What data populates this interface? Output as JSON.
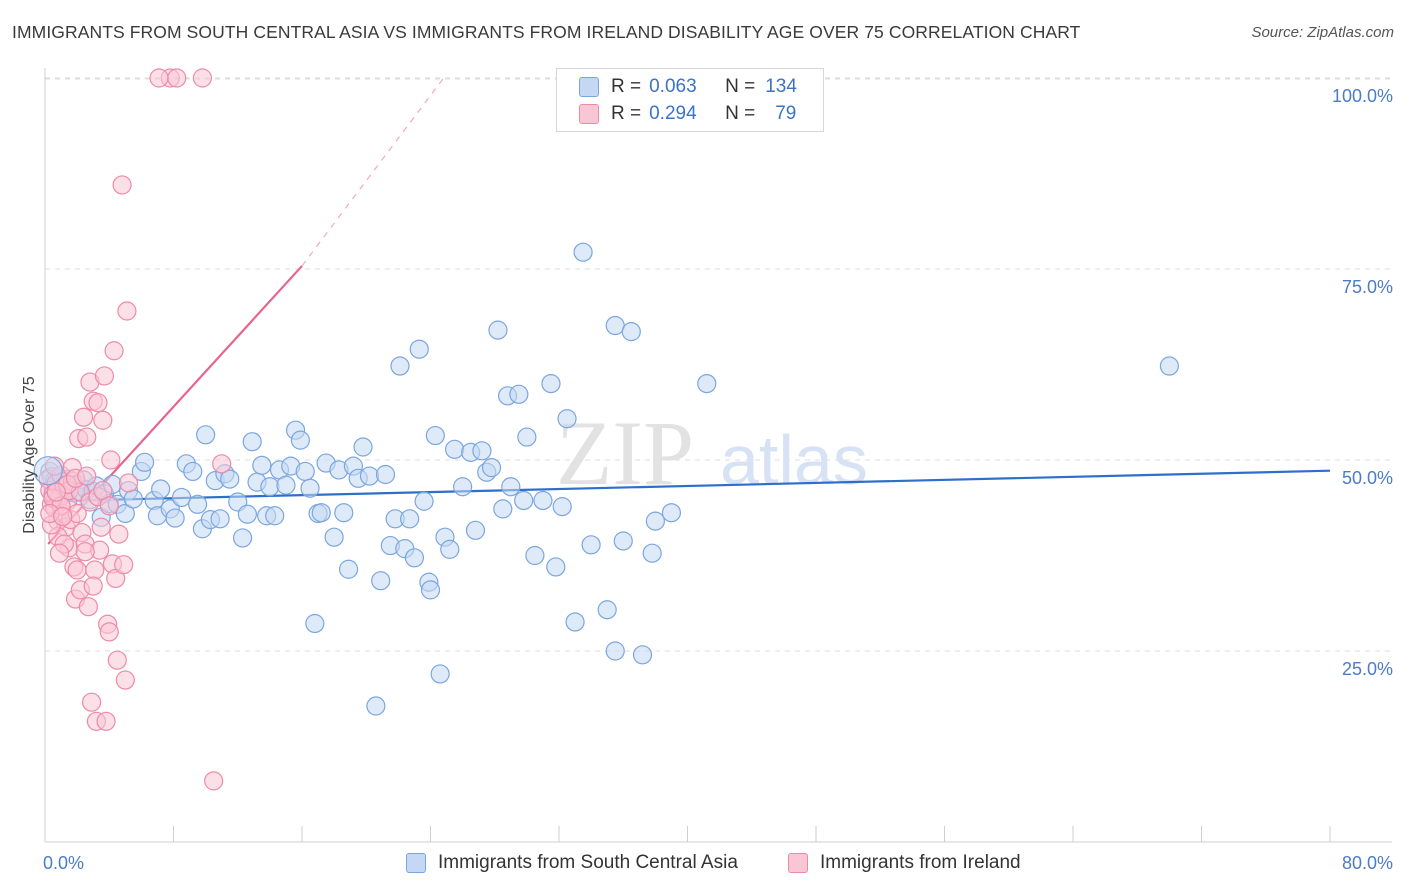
{
  "title": "IMMIGRANTS FROM SOUTH CENTRAL ASIA VS IMMIGRANTS FROM IRELAND DISABILITY AGE OVER 75 CORRELATION CHART",
  "source": "Source: ZipAtlas.com",
  "watermark": {
    "zip": "ZIP",
    "atlas": "atlas"
  },
  "legend": {
    "rows": [
      {
        "r_label": "R =",
        "r_value": "0.063",
        "n_label": "N =",
        "n_value": "134"
      },
      {
        "r_label": "R =",
        "r_value": "0.294",
        "n_label": "N =",
        "n_value": "79"
      }
    ]
  },
  "colors": {
    "blue_fill": "#c5d8f3",
    "blue_stroke": "#7aa6e0",
    "blue_line": "#2f6fcc",
    "pink_fill": "#f9c6d6",
    "pink_stroke": "#ee8aa9",
    "pink_line": "#e8648d",
    "grid": "#dddddd",
    "tick_text": "#4a7cc8"
  },
  "chart_data": {
    "type": "scatter",
    "xlabel": "",
    "ylabel": "Disability Age Over 75",
    "xlim": [
      0,
      80
    ],
    "ylim": [
      0,
      105
    ],
    "x_ticks": [
      "0.0%",
      "80.0%"
    ],
    "y_ticks": [
      {
        "value": 25,
        "label": "25.0%"
      },
      {
        "value": 50,
        "label": "50.0%"
      },
      {
        "value": 75,
        "label": "75.0%"
      },
      {
        "value": 100,
        "label": "100.0%"
      }
    ],
    "grid": "horizontal dashed",
    "legend_placement": "top-center and bottom",
    "series": [
      {
        "name": "Immigrants from South Central Asia",
        "color": "blue",
        "r": 0.063,
        "n": 134,
        "trend": {
          "x0": 0,
          "y0": 44.6,
          "x1": 80,
          "y1": 48.6
        },
        "points": [
          [
            0.3,
            48.5
          ],
          [
            0.4,
            47.8
          ],
          [
            0.5,
            46.5
          ],
          [
            0.6,
            47.3
          ],
          [
            0.8,
            46.0
          ],
          [
            0.9,
            47.7
          ],
          [
            1.0,
            46.8
          ],
          [
            1.1,
            45.5
          ],
          [
            1.2,
            47.1
          ],
          [
            1.3,
            46.2
          ],
          [
            1.5,
            47.5
          ],
          [
            1.6,
            46.3
          ],
          [
            1.8,
            45.7
          ],
          [
            2.0,
            46.9
          ],
          [
            2.2,
            45.3
          ],
          [
            2.4,
            47.4
          ],
          [
            2.6,
            46.1
          ],
          [
            2.8,
            44.8
          ],
          [
            3.0,
            45.9
          ],
          [
            3.2,
            46.6
          ],
          [
            3.5,
            42.5
          ],
          [
            3.7,
            45.6
          ],
          [
            4.0,
            44.3
          ],
          [
            4.2,
            46.8
          ],
          [
            4.5,
            44.2
          ],
          [
            5.0,
            43.0
          ],
          [
            5.2,
            46.0
          ],
          [
            5.5,
            44.9
          ],
          [
            6.0,
            48.5
          ],
          [
            6.2,
            49.7
          ],
          [
            6.8,
            44.7
          ],
          [
            7.2,
            46.2
          ],
          [
            7.0,
            42.7
          ],
          [
            7.8,
            43.6
          ],
          [
            8.1,
            42.4
          ],
          [
            8.5,
            45.1
          ],
          [
            8.8,
            49.5
          ],
          [
            9.2,
            48.5
          ],
          [
            9.5,
            44.2
          ],
          [
            9.8,
            41.0
          ],
          [
            10.0,
            53.3
          ],
          [
            10.3,
            42.2
          ],
          [
            10.6,
            47.3
          ],
          [
            10.9,
            42.3
          ],
          [
            11.2,
            48.2
          ],
          [
            11.5,
            47.5
          ],
          [
            12.0,
            44.5
          ],
          [
            12.3,
            39.8
          ],
          [
            12.6,
            42.9
          ],
          [
            12.9,
            52.4
          ],
          [
            13.2,
            47.1
          ],
          [
            13.5,
            49.3
          ],
          [
            13.8,
            42.7
          ],
          [
            14.0,
            46.5
          ],
          [
            14.3,
            42.7
          ],
          [
            14.6,
            48.7
          ],
          [
            15.0,
            46.7
          ],
          [
            15.3,
            49.2
          ],
          [
            15.6,
            53.9
          ],
          [
            15.9,
            52.6
          ],
          [
            16.2,
            48.5
          ],
          [
            16.5,
            46.3
          ],
          [
            16.8,
            28.6
          ],
          [
            17.0,
            43.0
          ],
          [
            17.2,
            43.1
          ],
          [
            17.5,
            49.6
          ],
          [
            18.0,
            39.9
          ],
          [
            18.3,
            48.7
          ],
          [
            18.6,
            43.1
          ],
          [
            18.9,
            35.7
          ],
          [
            19.2,
            49.2
          ],
          [
            19.5,
            47.6
          ],
          [
            19.8,
            51.7
          ],
          [
            20.2,
            47.9
          ],
          [
            20.6,
            17.8
          ],
          [
            20.9,
            34.2
          ],
          [
            21.2,
            48.1
          ],
          [
            21.5,
            38.8
          ],
          [
            21.8,
            42.3
          ],
          [
            22.1,
            62.3
          ],
          [
            22.4,
            38.4
          ],
          [
            22.7,
            42.3
          ],
          [
            23.0,
            37.2
          ],
          [
            23.3,
            64.5
          ],
          [
            23.6,
            44.6
          ],
          [
            23.9,
            34.0
          ],
          [
            24.0,
            33.0
          ],
          [
            24.3,
            53.2
          ],
          [
            24.6,
            22.0
          ],
          [
            24.9,
            39.9
          ],
          [
            25.2,
            38.3
          ],
          [
            25.5,
            51.4
          ],
          [
            26.0,
            46.5
          ],
          [
            26.5,
            51.0
          ],
          [
            26.8,
            40.8
          ],
          [
            27.2,
            51.2
          ],
          [
            27.5,
            48.4
          ],
          [
            27.8,
            49.0
          ],
          [
            28.2,
            67.0
          ],
          [
            28.5,
            43.6
          ],
          [
            28.8,
            58.4
          ],
          [
            29.0,
            46.5
          ],
          [
            29.5,
            58.6
          ],
          [
            29.8,
            44.7
          ],
          [
            30.0,
            53.0
          ],
          [
            30.5,
            37.5
          ],
          [
            31.0,
            44.7
          ],
          [
            31.5,
            60.0
          ],
          [
            31.8,
            36.0
          ],
          [
            32.2,
            43.9
          ],
          [
            32.5,
            55.4
          ],
          [
            33.0,
            28.8
          ],
          [
            33.5,
            77.2
          ],
          [
            34.0,
            38.9
          ],
          [
            35.0,
            30.4
          ],
          [
            35.5,
            67.6
          ],
          [
            36.0,
            39.4
          ],
          [
            36.5,
            66.8
          ],
          [
            37.2,
            24.5
          ],
          [
            37.8,
            37.8
          ],
          [
            38.0,
            42.0
          ],
          [
            39.0,
            43.1
          ],
          [
            35.5,
            25.0
          ],
          [
            41.2,
            60.0
          ],
          [
            70.0,
            62.3
          ]
        ]
      },
      {
        "name": "Immigrants from Ireland",
        "color": "pink",
        "r": 0.294,
        "n": 79,
        "trend": {
          "x0": 0.2,
          "y0": 39.0,
          "x1": 16.0,
          "y1": 75.4,
          "dash_x1": 25.0,
          "dash_y1": 100.5
        },
        "points": [
          [
            0.2,
            47.5
          ],
          [
            0.3,
            46.0
          ],
          [
            0.4,
            44.2
          ],
          [
            0.5,
            45.5
          ],
          [
            0.6,
            43.7
          ],
          [
            0.7,
            47.0
          ],
          [
            0.8,
            42.0
          ],
          [
            0.9,
            45.0
          ],
          [
            1.0,
            48.0
          ],
          [
            1.1,
            43.0
          ],
          [
            1.2,
            46.5
          ],
          [
            1.3,
            41.2
          ],
          [
            1.4,
            44.6
          ],
          [
            1.5,
            38.5
          ],
          [
            1.6,
            42.2
          ],
          [
            1.7,
            47.2
          ],
          [
            1.8,
            36.0
          ],
          [
            1.9,
            31.8
          ],
          [
            2.0,
            35.6
          ],
          [
            2.1,
            52.8
          ],
          [
            2.2,
            33.0
          ],
          [
            2.3,
            40.5
          ],
          [
            2.4,
            55.6
          ],
          [
            2.5,
            39.0
          ],
          [
            2.6,
            53.0
          ],
          [
            2.7,
            30.8
          ],
          [
            2.8,
            60.2
          ],
          [
            2.9,
            18.3
          ],
          [
            3.0,
            57.7
          ],
          [
            3.1,
            35.6
          ],
          [
            3.2,
            15.8
          ],
          [
            3.3,
            57.5
          ],
          [
            3.4,
            38.2
          ],
          [
            3.5,
            41.2
          ],
          [
            3.6,
            55.2
          ],
          [
            3.7,
            61.0
          ],
          [
            3.8,
            15.8
          ],
          [
            3.9,
            28.5
          ],
          [
            4.0,
            27.5
          ],
          [
            4.1,
            50.0
          ],
          [
            4.2,
            36.4
          ],
          [
            4.3,
            64.3
          ],
          [
            4.4,
            34.5
          ],
          [
            4.5,
            23.8
          ],
          [
            4.6,
            40.3
          ],
          [
            4.8,
            86.0
          ],
          [
            4.9,
            36.3
          ],
          [
            5.0,
            21.2
          ],
          [
            5.1,
            69.5
          ],
          [
            5.2,
            47.0
          ],
          [
            7.8,
            100.0
          ],
          [
            8.2,
            100.0
          ],
          [
            9.8,
            100.0
          ],
          [
            7.1,
            100.0
          ],
          [
            10.5,
            8.0
          ],
          [
            11.0,
            49.5
          ],
          [
            0.5,
            45.0
          ],
          [
            1.0,
            44.0
          ],
          [
            1.5,
            46.0
          ],
          [
            2.0,
            43.0
          ],
          [
            0.8,
            40.0
          ],
          [
            1.2,
            39.0
          ],
          [
            2.5,
            38.0
          ],
          [
            3.0,
            33.5
          ],
          [
            1.7,
            49.0
          ],
          [
            2.2,
            45.8
          ],
          [
            0.4,
            41.5
          ],
          [
            0.9,
            37.8
          ],
          [
            1.4,
            46.8
          ],
          [
            2.8,
            44.5
          ],
          [
            0.6,
            49.2
          ],
          [
            1.9,
            47.6
          ],
          [
            3.3,
            45.2
          ],
          [
            0.3,
            43.0
          ],
          [
            1.1,
            42.6
          ],
          [
            2.6,
            47.9
          ],
          [
            3.6,
            46.0
          ],
          [
            4.0,
            44.0
          ],
          [
            0.7,
            45.8
          ]
        ]
      }
    ]
  }
}
